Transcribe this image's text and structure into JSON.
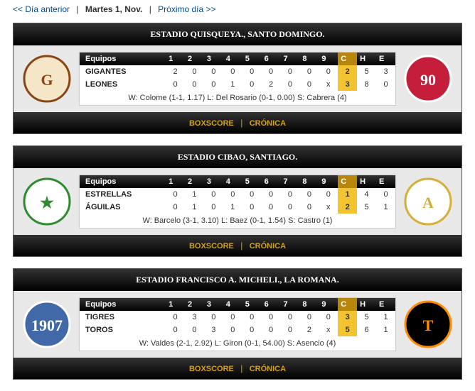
{
  "nav": {
    "prev": "<< Día anterior",
    "cur": "Martes 1, Nov.",
    "next": "Próximo día >>"
  },
  "hdrs": [
    "Equipos",
    "1",
    "2",
    "3",
    "4",
    "5",
    "6",
    "7",
    "8",
    "9",
    "C",
    "H",
    "E"
  ],
  "ftr": {
    "box": "BOXSCORE",
    "cron": "CRÓNICA"
  },
  "games": [
    {
      "stadium": "ESTADIO QUISQUEYA., SANTO DOMINGO.",
      "teams": [
        {
          "name": "GIGANTES",
          "i": [
            "2",
            "0",
            "0",
            "0",
            "0",
            "0",
            "0",
            "0",
            "0"
          ],
          "c": "2",
          "h": "5",
          "e": "3"
        },
        {
          "name": "LEONES",
          "i": [
            "0",
            "0",
            "0",
            "1",
            "0",
            "2",
            "0",
            "0",
            "x"
          ],
          "c": "3",
          "h": "8",
          "e": "0"
        }
      ],
      "pitching": "W: Colome (1-1, 1.17) L: Del Rosario (0-1, 0.00) S: Cabrera (4)",
      "logo1": {
        "bg": "#f5e6c8",
        "fg": "#8b4513",
        "txt": "G"
      },
      "logo2": {
        "bg": "#c41e3a",
        "fg": "#fff",
        "txt": "90"
      }
    },
    {
      "stadium": "ESTADIO CIBAO, SANTIAGO.",
      "teams": [
        {
          "name": "ESTRELLAS",
          "i": [
            "0",
            "1",
            "0",
            "0",
            "0",
            "0",
            "0",
            "0",
            "0"
          ],
          "c": "1",
          "h": "4",
          "e": "0"
        },
        {
          "name": "ÁGUILAS",
          "i": [
            "0",
            "1",
            "0",
            "1",
            "0",
            "0",
            "0",
            "0",
            "x"
          ],
          "c": "2",
          "h": "5",
          "e": "1"
        }
      ],
      "pitching": "W: Barcelo (3-1, 3.10) L: Baez (0-1, 1.54) S: Castro (1)",
      "logo1": {
        "bg": "#fff",
        "fg": "#2e8b2e",
        "txt": "★"
      },
      "logo2": {
        "bg": "#fff",
        "fg": "#d4af37",
        "txt": "A"
      }
    },
    {
      "stadium": "ESTADIO FRANCISCO A. MICHELI., LA ROMANA.",
      "teams": [
        {
          "name": "TIGRES",
          "i": [
            "0",
            "3",
            "0",
            "0",
            "0",
            "0",
            "0",
            "0",
            "0"
          ],
          "c": "3",
          "h": "5",
          "e": "1"
        },
        {
          "name": "TOROS",
          "i": [
            "0",
            "0",
            "3",
            "0",
            "0",
            "0",
            "0",
            "2",
            "x"
          ],
          "c": "5",
          "h": "6",
          "e": "1"
        }
      ],
      "pitching": "W: Valdes (2-1, 2.92) L: Giron (0-1, 54.00) S: Asencio (4)",
      "logo1": {
        "bg": "#4169a8",
        "fg": "#fff",
        "txt": "1907"
      },
      "logo2": {
        "bg": "#000",
        "fg": "#ff8c00",
        "txt": "T"
      }
    }
  ]
}
